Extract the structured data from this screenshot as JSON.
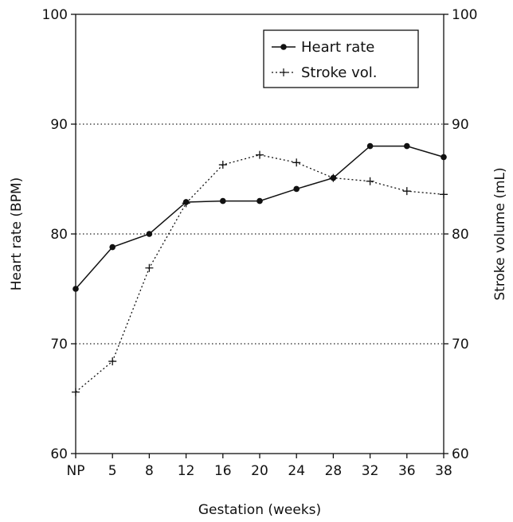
{
  "chart_data": {
    "type": "line",
    "title": "",
    "xlabel": "Gestation (weeks)",
    "ylabel": "Heart rate (BPM)",
    "y2label": "Stroke volume (mL)",
    "categories": [
      "NP",
      "5",
      "8",
      "12",
      "16",
      "20",
      "24",
      "28",
      "32",
      "36",
      "38"
    ],
    "ylim": [
      60,
      100
    ],
    "y2lim": [
      60,
      100
    ],
    "yticks": [
      "60",
      "70",
      "80",
      "90",
      "100"
    ],
    "y2ticks": [
      "60",
      "70",
      "80",
      "90",
      "100"
    ],
    "grid": "dotted horizontal at 70, 80, 90",
    "legend_position": "top-right",
    "series": [
      {
        "name": "Heart rate",
        "axis": "left",
        "style": "solid-dot",
        "color": "#111111",
        "values": [
          75,
          78.8,
          80,
          82.9,
          83,
          83,
          84.1,
          85.1,
          88,
          88,
          87
        ]
      },
      {
        "name": "Stroke vol.",
        "axis": "right",
        "style": "dotted-plus",
        "color": "#111111",
        "values": [
          65.6,
          68.4,
          76.9,
          82.8,
          86.3,
          87.2,
          86.5,
          85.1,
          84.8,
          83.9,
          83.6
        ]
      }
    ]
  }
}
